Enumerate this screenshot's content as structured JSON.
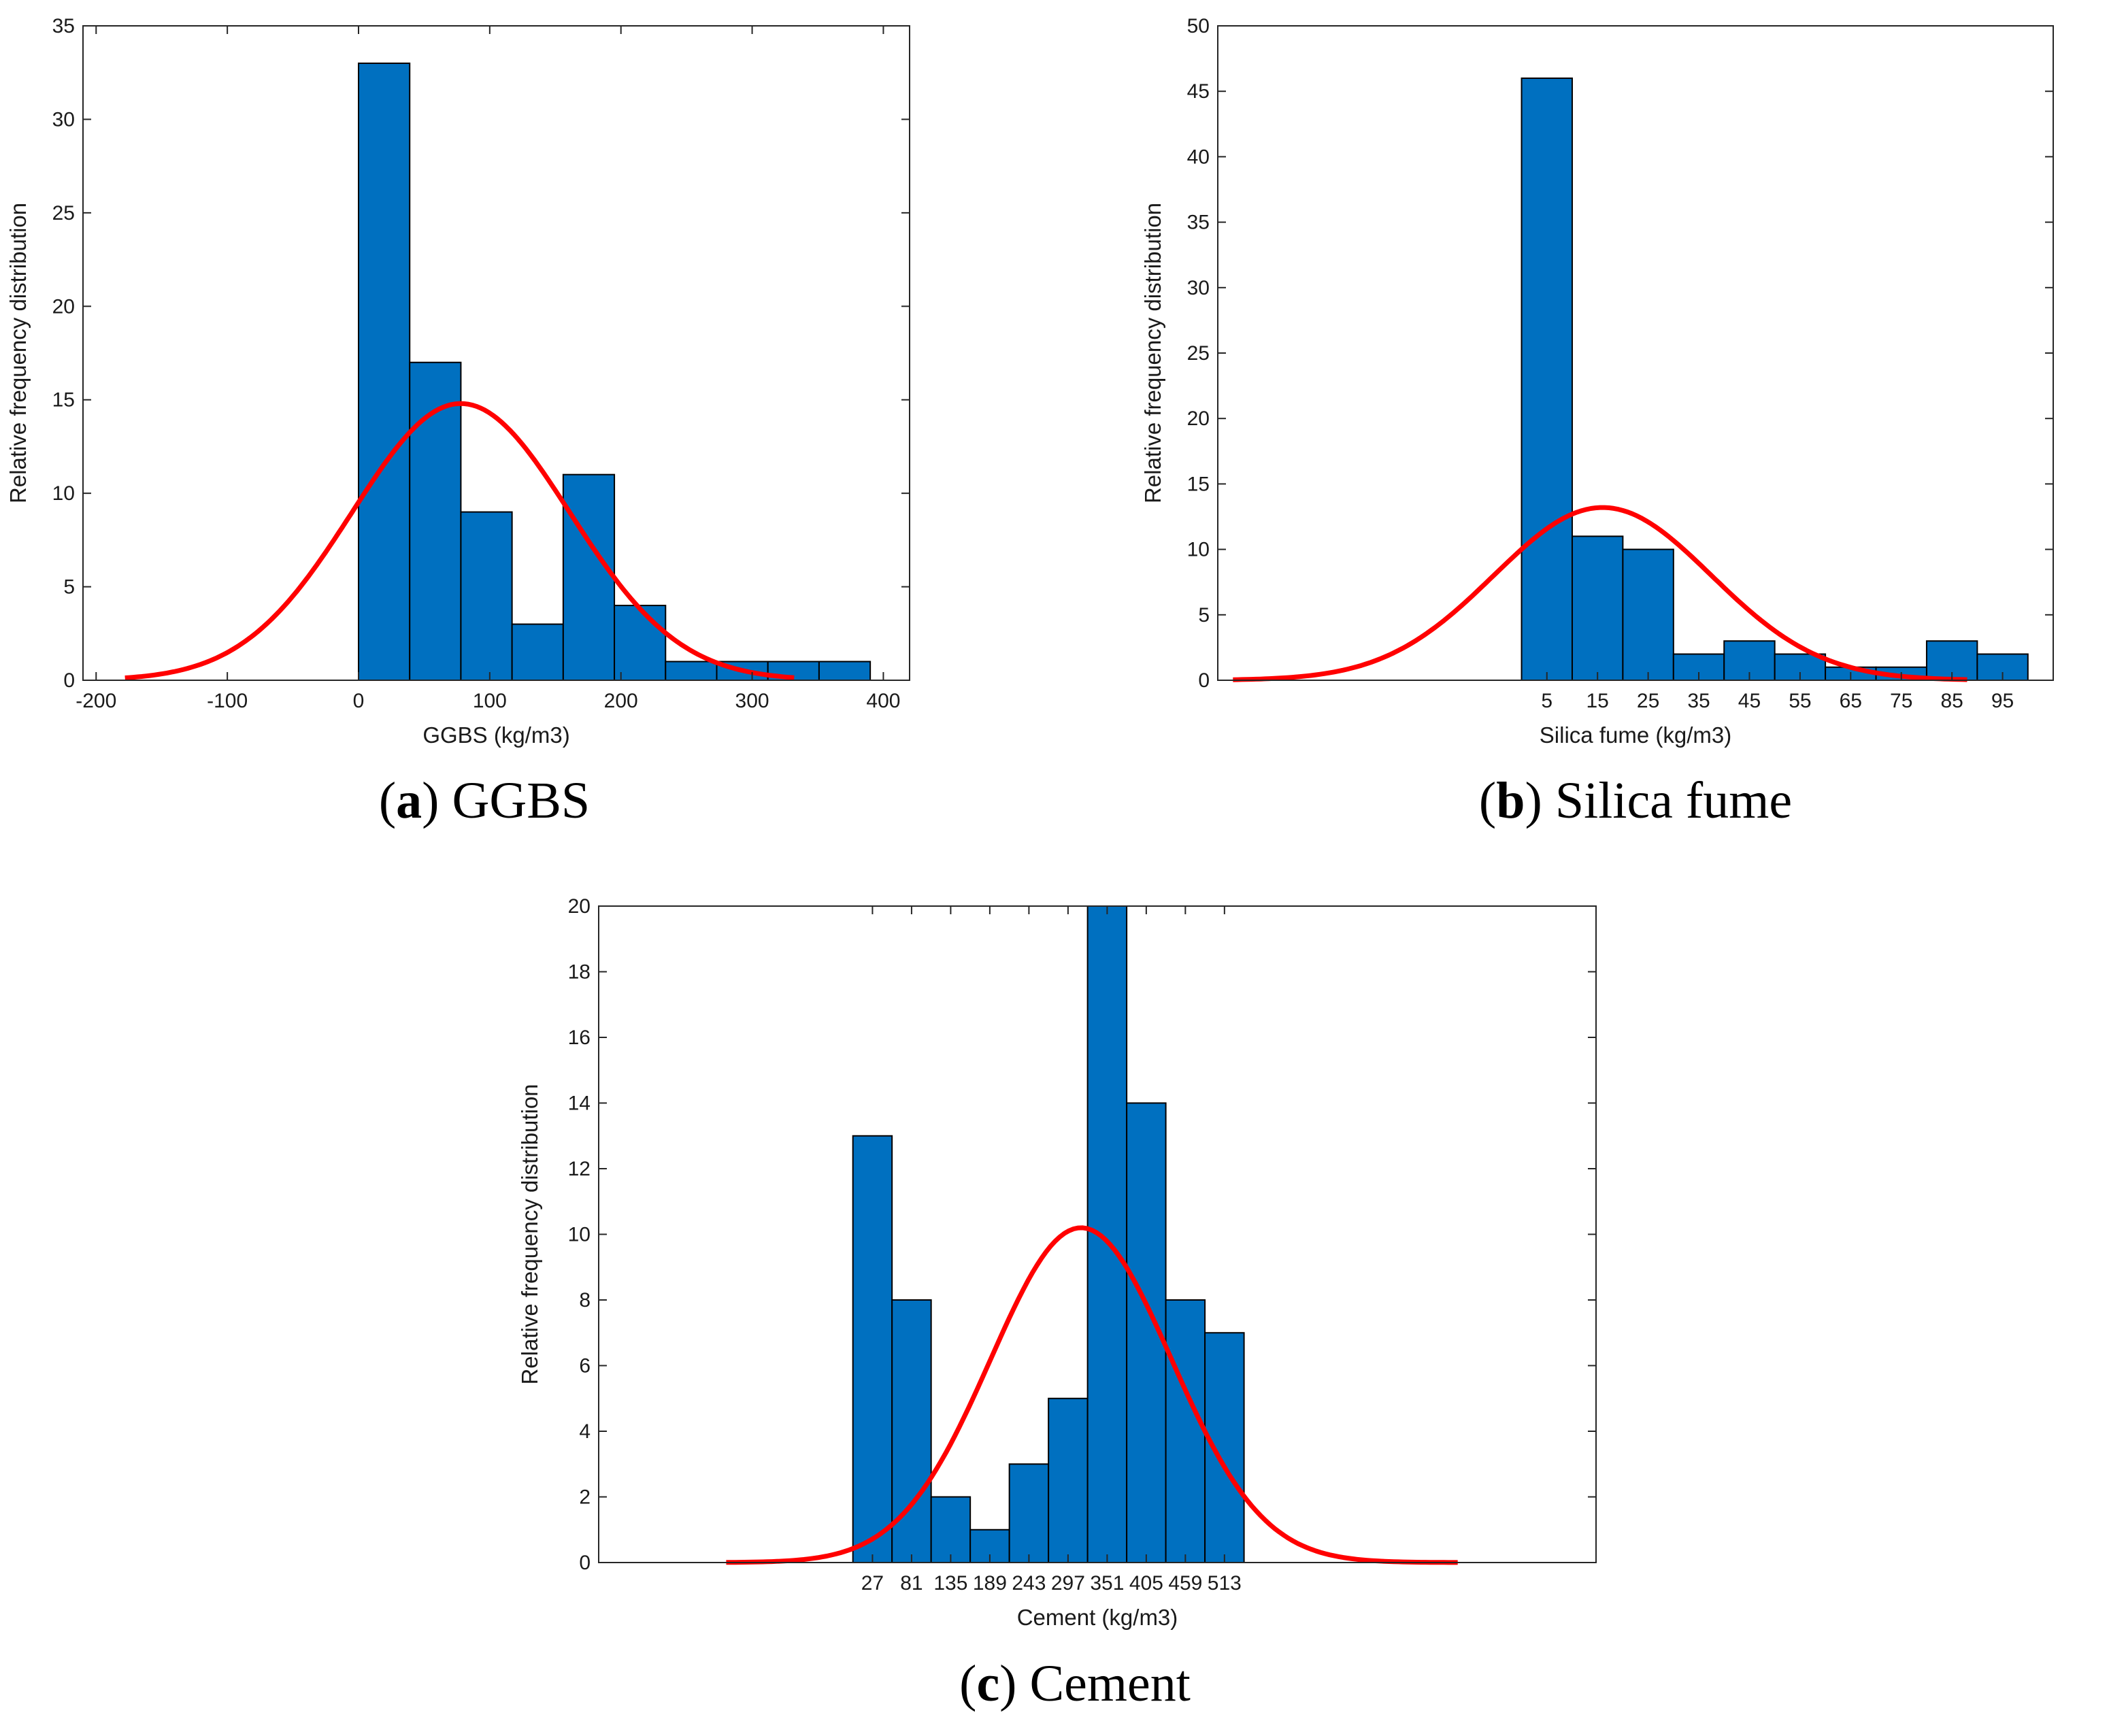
{
  "colors": {
    "bar": "#0070c0",
    "bar_edge": "#000000",
    "curve": "#ff0000",
    "axis": "#262626"
  },
  "chart_data": [
    {
      "type": "bar",
      "caption": {
        "letter": "a",
        "text": "GGBS"
      },
      "xlabel": "GGBS (kg/m3)",
      "ylabel": "Relative frequency distribution",
      "xlim": [
        -210,
        420
      ],
      "ylim": [
        0,
        35
      ],
      "xticks": [
        -200,
        -100,
        0,
        100,
        200,
        300,
        400
      ],
      "yticks": [
        0,
        5,
        10,
        15,
        20,
        25,
        30,
        35
      ],
      "bin_edges": [
        0,
        39,
        78,
        117,
        156,
        195,
        234,
        273,
        312,
        351,
        390
      ],
      "values": [
        33,
        17,
        9,
        3,
        11,
        4,
        1,
        1,
        1,
        1
      ],
      "fit": {
        "type": "normal",
        "peak_x": 78,
        "peak_y": 14.8,
        "sigma": 83,
        "x_range": [
          -178,
          332
        ]
      },
      "top_ticks": true,
      "right_ticks": true
    },
    {
      "type": "bar",
      "caption": {
        "letter": "b",
        "text": "Silica fume"
      },
      "xlabel": "Silica fume (kg/m3)",
      "ylabel": "Relative frequency distribution",
      "xlim": [
        -60,
        105
      ],
      "ylim": [
        0,
        50
      ],
      "xticks": [
        5,
        15,
        25,
        35,
        45,
        55,
        65,
        75,
        85,
        95
      ],
      "yticks": [
        0,
        5,
        10,
        15,
        20,
        25,
        30,
        35,
        40,
        45,
        50
      ],
      "bin_edges": [
        0,
        10,
        20,
        30,
        40,
        50,
        60,
        70,
        80,
        90,
        100
      ],
      "values": [
        46,
        11,
        10,
        2,
        3,
        2,
        1,
        1,
        3,
        2
      ],
      "fit": {
        "type": "normal",
        "peak_x": 16,
        "peak_y": 13.2,
        "sigma": 21.5,
        "x_range": [
          -57,
          88
        ]
      },
      "top_ticks": false,
      "right_ticks": true
    },
    {
      "type": "bar",
      "caption": {
        "letter": "c",
        "text": "Cement"
      },
      "xlabel": "Cement (kg/m3)",
      "ylabel": "Relative frequency distribution",
      "xlim": [
        -351,
        1026
      ],
      "ylim": [
        0,
        20
      ],
      "xticks": [
        27,
        81,
        135,
        189,
        243,
        297,
        351,
        405,
        459,
        513
      ],
      "yticks": [
        0,
        2,
        4,
        6,
        8,
        10,
        12,
        14,
        16,
        18,
        20
      ],
      "bin_edges": [
        0,
        54,
        108,
        162,
        216,
        270,
        324,
        378,
        432,
        486,
        540
      ],
      "values": [
        13,
        8,
        2,
        1,
        3,
        5,
        20,
        14,
        8,
        7
      ],
      "fit": {
        "type": "normal",
        "peak_x": 315,
        "peak_y": 10.2,
        "sigma": 125,
        "x_range": [
          -175,
          835
        ]
      },
      "top_ticks": true,
      "right_ticks": true
    }
  ]
}
